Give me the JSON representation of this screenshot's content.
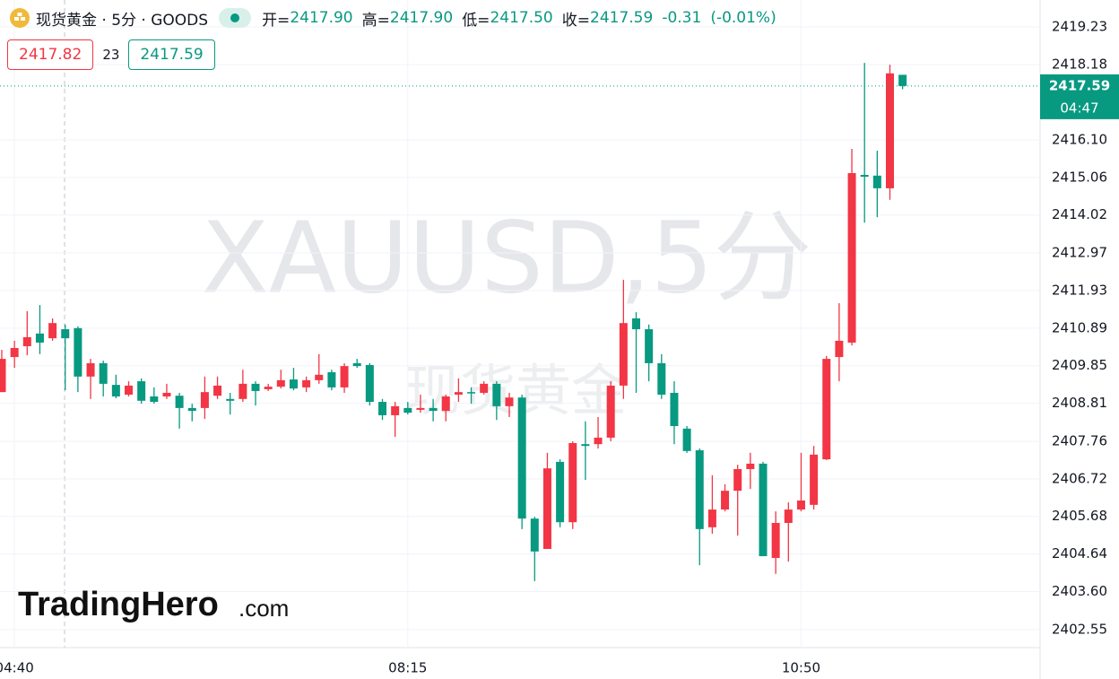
{
  "header": {
    "title": "现货黄金 · 5分 · GOODS",
    "open_label": "开=",
    "open": "2417.90",
    "high_label": "高=",
    "high": "2417.90",
    "low_label": "低=",
    "low": "2417.50",
    "close_label": "收=",
    "close": "2417.59",
    "change": "-0.31",
    "change_pct": "(-0.01%)",
    "bid": "2417.82",
    "spread": "23",
    "ask": "2417.59"
  },
  "watermark": {
    "symbol": "XAUUSD,5分",
    "name": "现货黄金"
  },
  "logo": {
    "brand": "TradingHero",
    "suffix": ".com"
  },
  "chart_data": {
    "type": "candlestick",
    "up_color": "#f23645",
    "down_color": "#089981",
    "grid": true,
    "countdown": "04:47",
    "ylim": [
      2402.05,
      2419.97
    ],
    "yticks": [
      2419.23,
      2418.18,
      {
        "value": 2416.1,
        "label": "2416.10"
      },
      2415.06,
      2414.02,
      2412.97,
      2411.93,
      2410.89,
      2409.85,
      2408.81,
      2407.76,
      2406.72,
      2405.68,
      2404.64,
      {
        "value": 2403.6,
        "label": "2403.60"
      },
      2402.55
    ],
    "categories": [
      null,
      "04:40",
      null,
      null,
      null,
      null,
      null,
      null,
      null,
      null,
      null,
      null,
      null,
      null,
      null,
      null,
      null,
      null,
      null,
      null,
      null,
      null,
      null,
      null,
      null,
      null,
      null,
      null,
      null,
      null,
      null,
      null,
      "08:15",
      null,
      null,
      null,
      null,
      null,
      null,
      null,
      null,
      null,
      null,
      null,
      null,
      null,
      null,
      null,
      null,
      null,
      null,
      null,
      null,
      null,
      null,
      null,
      null,
      null,
      null,
      null,
      null,
      null,
      null,
      "10:50",
      null,
      null,
      null,
      null,
      null,
      null,
      null,
      null
    ],
    "open": [
      2409.12,
      2410.09,
      2410.39,
      2410.74,
      2410.61,
      2410.86,
      2410.89,
      2409.55,
      2409.92,
      2409.32,
      2409.05,
      2409.42,
      2409.0,
      2409.0,
      2409.02,
      2408.68,
      2408.68,
      2409.02,
      2408.93,
      2408.93,
      2409.35,
      2409.2,
      2409.27,
      2409.47,
      2409.25,
      2409.45,
      2409.67,
      2409.25,
      2409.92,
      2409.87,
      2408.85,
      2408.48,
      2408.68,
      2408.63,
      2408.68,
      2408.6,
      2409.05,
      2409.12,
      2409.1,
      2409.35,
      2408.73,
      2408.97,
      2405.62,
      2404.78,
      2407.19,
      2405.52,
      2407.68,
      2407.68,
      2407.86,
      2409.3,
      2411.16,
      2410.86,
      2409.92,
      2409.1,
      2408.11,
      2407.51,
      2405.38,
      2405.87,
      2406.39,
      2406.99,
      2407.14,
      2404.53,
      2405.5,
      2405.87,
      2406.0,
      2407.26,
      2410.09,
      2410.49,
      2415.13,
      2415.11,
      2414.76,
      2417.9
    ],
    "high": [
      2410.29,
      2410.54,
      2411.36,
      2411.53,
      2411.16,
      2410.99,
      2410.94,
      2410.04,
      2409.99,
      2409.6,
      2409.42,
      2409.5,
      2409.25,
      2409.35,
      2409.1,
      2408.8,
      2409.55,
      2409.55,
      2409.1,
      2409.74,
      2409.42,
      2409.35,
      2409.74,
      2409.79,
      2409.55,
      2410.17,
      2409.74,
      2409.92,
      2410.04,
      2409.92,
      2408.93,
      2408.85,
      2408.85,
      2409.05,
      2408.93,
      2409.05,
      2409.5,
      2409.25,
      2409.42,
      2409.42,
      2409.1,
      2409.05,
      2405.67,
      2407.44,
      2407.26,
      2407.76,
      2408.31,
      2408.43,
      2409.42,
      2412.23,
      2411.33,
      2410.99,
      2410.17,
      2409.42,
      2408.18,
      2407.56,
      2406.82,
      2406.57,
      2407.11,
      2407.44,
      2407.19,
      2405.82,
      2406.07,
      2407.44,
      2407.63,
      2410.12,
      2411.58,
      2415.85,
      2418.23,
      2415.8,
      2418.18,
      2417.9
    ],
    "low": [
      2409.12,
      2409.79,
      2410.14,
      2410.17,
      2410.54,
      2409.17,
      2409.12,
      2408.93,
      2409.0,
      2408.95,
      2409.0,
      2408.8,
      2408.8,
      2408.93,
      2408.11,
      2408.31,
      2408.38,
      2408.93,
      2408.5,
      2408.85,
      2408.75,
      2409.15,
      2409.22,
      2409.17,
      2409.12,
      2409.35,
      2409.17,
      2409.1,
      2409.79,
      2408.75,
      2408.35,
      2407.88,
      2408.5,
      2408.55,
      2408.31,
      2408.31,
      2408.85,
      2408.8,
      2409.05,
      2408.35,
      2408.43,
      2405.33,
      2403.89,
      2404.78,
      2405.38,
      2405.33,
      2406.69,
      2407.56,
      2407.76,
      2408.93,
      2409.1,
      2409.42,
      2408.93,
      2407.68,
      2407.44,
      2404.33,
      2405.2,
      2405.82,
      2405.15,
      2406.44,
      2404.58,
      2404.09,
      2404.43,
      2405.82,
      2405.87,
      2407.24,
      2409.42,
      2410.41,
      2413.81,
      2413.96,
      2414.44,
      2417.5
    ],
    "close": [
      2410.04,
      2410.34,
      2410.64,
      2410.49,
      2411.03,
      2410.61,
      2409.55,
      2409.92,
      2409.35,
      2409.0,
      2409.3,
      2408.88,
      2408.85,
      2409.1,
      2408.68,
      2408.6,
      2409.12,
      2409.3,
      2408.88,
      2409.35,
      2409.15,
      2409.27,
      2409.45,
      2409.22,
      2409.45,
      2409.6,
      2409.25,
      2409.84,
      2409.84,
      2408.85,
      2408.48,
      2408.73,
      2408.55,
      2408.68,
      2408.6,
      2409.0,
      2409.12,
      2409.1,
      2409.35,
      2408.73,
      2408.97,
      2405.62,
      2404.71,
      2407.01,
      2405.52,
      2407.71,
      2407.63,
      2407.86,
      2409.3,
      2411.03,
      2410.86,
      2409.92,
      2409.05,
      2408.18,
      2407.49,
      2405.33,
      2405.87,
      2406.39,
      2406.99,
      2407.14,
      2404.58,
      2405.5,
      2405.87,
      2406.12,
      2407.39,
      2410.04,
      2410.54,
      2415.18,
      2415.08,
      2414.76,
      2417.94,
      2417.59
    ]
  }
}
